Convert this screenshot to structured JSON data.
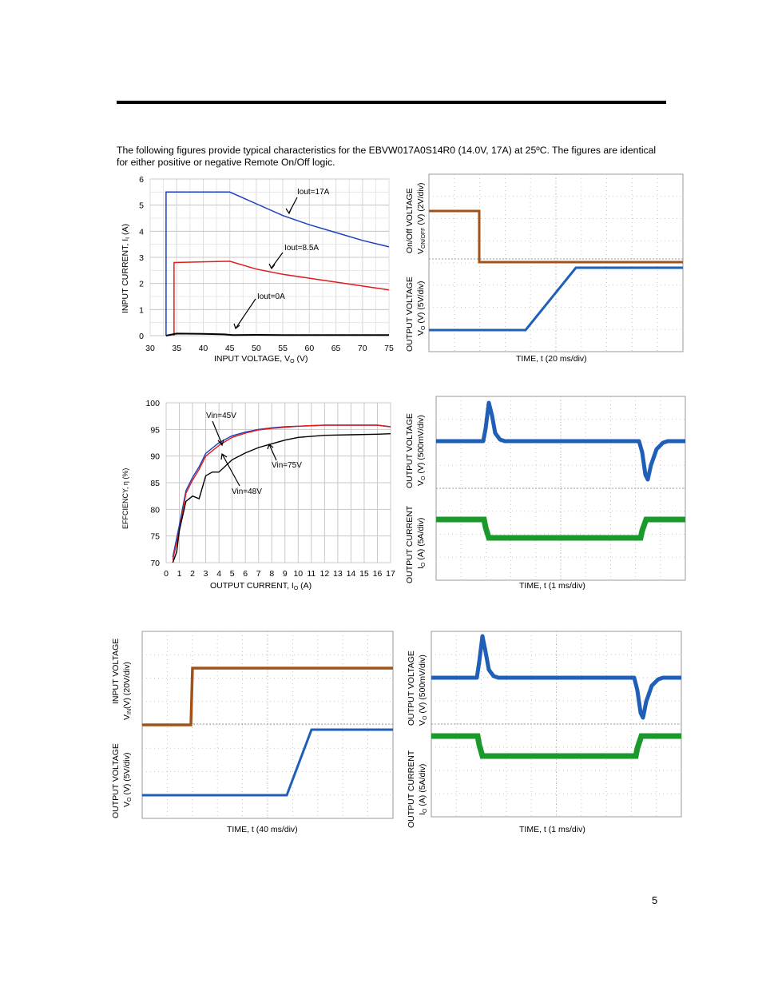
{
  "intro_text": "The following figures provide typical characteristics for the EBVW017A0S14R0 (14.0V, 17A) at 25ºC. The figures are identical for either positive or negative Remote On/Off logic.",
  "page_number": "5",
  "fig1": {
    "ylabel": "INPUT CURRENT, I",
    "ylabel_sub": "I",
    "ylabel_unit": " (A)",
    "xlabel": "INPUT VOLTAGE, V",
    "xlabel_sub": "O",
    "xlabel_unit": " (V)",
    "xticks": [
      "30",
      "35",
      "40",
      "45",
      "50",
      "55",
      "60",
      "65",
      "70",
      "75"
    ],
    "yticks": [
      "0",
      "1",
      "2",
      "3",
      "4",
      "5",
      "6"
    ],
    "ann_17": "Iout=17A",
    "ann_85": "Iout=8.5A",
    "ann_0": "Iout=0A"
  },
  "fig2": {
    "ylabel_top": "On/Off VOLTAGE",
    "ylabel_top2": "V",
    "ylabel_top2_sub": "ON/OFF",
    "ylabel_top2_unit": " (V) (2V/div)",
    "ylabel_bot": "OUTPUT VOLTAGE",
    "ylabel_bot2": "V",
    "ylabel_bot2_sub": "O",
    "ylabel_bot2_unit": " (V) (5V/div)",
    "xlabel": "TIME, t (20 ms/div)"
  },
  "fig3": {
    "ylabel": "EFFCIENCY, η (%)",
    "xlabel": "OUTPUT CURRENT, I",
    "xlabel_sub": "O",
    "xlabel_unit": " (A)",
    "xticks": [
      "0",
      "1",
      "2",
      "3",
      "4",
      "5",
      "6",
      "7",
      "8",
      "9",
      "10",
      "11",
      "12",
      "13",
      "14",
      "15",
      "16",
      "17"
    ],
    "yticks": [
      "70",
      "75",
      "80",
      "85",
      "90",
      "95",
      "100"
    ],
    "ann_45": "Vin=45V",
    "ann_75": "Vin=75V",
    "ann_48": "Vin=48V"
  },
  "fig4": {
    "ylabel_top": "OUTPUT VOLTAGE",
    "ylabel_top2": "V",
    "ylabel_top2_sub": "O",
    "ylabel_top2_unit": " (V) (500mV/div)",
    "ylabel_bot": "OUTPUT CURRENT",
    "ylabel_bot2": "I",
    "ylabel_bot2_sub": "O",
    "ylabel_bot2_unit": " (A) (5A/div)",
    "xlabel": "TIME, t (1 ms/div)"
  },
  "fig5": {
    "ylabel_top": "INPUT VOLTAGE",
    "ylabel_top2": "V",
    "ylabel_top2_sub": "IN",
    "ylabel_top2_unit": "(V) (20V/div)",
    "ylabel_bot": "OUTPUT VOLTAGE",
    "ylabel_bot2": "V",
    "ylabel_bot2_sub": "O",
    "ylabel_bot2_unit": " (V) (5V/div)",
    "xlabel": "TIME, t (40 ms/div)"
  },
  "fig6": {
    "ylabel_top": "OUTPUT VOLTAGE",
    "ylabel_top2": "V",
    "ylabel_top2_sub": "O",
    "ylabel_top2_unit": " (V) (500mV/div)",
    "ylabel_bot": "OUTPUT CURRENT",
    "ylabel_bot2": "I",
    "ylabel_bot2_sub": "O",
    "ylabel_bot2_unit": " (A) (5A/div)",
    "xlabel": "TIME, t (1 ms/div)"
  },
  "chart_data": [
    {
      "type": "line",
      "xlabel": "INPUT VOLTAGE, VO (V)",
      "ylabel": "INPUT CURRENT, II (A)",
      "xlim": [
        30,
        75
      ],
      "ylim": [
        0,
        6
      ],
      "grid": true,
      "series": [
        {
          "name": "Iout=17A",
          "x": [
            33,
            33,
            45,
            50,
            55,
            60,
            65,
            70,
            75
          ],
          "y": [
            0,
            5.5,
            5.5,
            5.05,
            4.6,
            4.25,
            3.95,
            3.65,
            3.4
          ]
        },
        {
          "name": "Iout=8.5A",
          "x": [
            34.5,
            34.5,
            45,
            50,
            55,
            60,
            65,
            70,
            75
          ],
          "y": [
            0,
            2.8,
            2.85,
            2.55,
            2.35,
            2.2,
            2.05,
            1.9,
            1.75
          ]
        },
        {
          "name": "Iout=0A",
          "x": [
            33,
            35,
            40,
            44,
            45.5,
            50,
            55,
            60,
            65,
            70,
            75
          ],
          "y": [
            0,
            0.08,
            0.07,
            0.05,
            0.02,
            0.03,
            0.02,
            0.02,
            0.02,
            0.02,
            0.02
          ]
        }
      ]
    },
    {
      "type": "line",
      "xlabel": "OUTPUT CURRENT, IO (A)",
      "ylabel": "EFFCIENCY, η (%)",
      "xlim": [
        0,
        17
      ],
      "ylim": [
        70,
        100
      ],
      "grid": true,
      "series": [
        {
          "name": "Vin=45V",
          "x": [
            0.5,
            1,
            1.5,
            2,
            2.5,
            3,
            4,
            5,
            6,
            7,
            8,
            9,
            10,
            12,
            14,
            16,
            17
          ],
          "y": [
            71,
            77,
            83.5,
            86,
            88,
            90.5,
            92.5,
            93.8,
            94.5,
            95,
            95.3,
            95.5,
            95.6,
            95.8,
            95.8,
            95.8,
            95.5
          ]
        },
        {
          "name": "Vin=48V",
          "x": [
            0.5,
            1,
            1.5,
            2,
            2.5,
            3,
            4,
            5,
            6,
            7,
            8,
            9,
            10,
            12,
            14,
            16,
            17
          ],
          "y": [
            70.5,
            76,
            83,
            85.5,
            87.5,
            90,
            92,
            93.5,
            94.3,
            94.9,
            95.2,
            95.4,
            95.6,
            95.8,
            95.8,
            95.8,
            95.5
          ]
        },
        {
          "name": "Vin=75V",
          "x": [
            0.5,
            0.8,
            1,
            1.5,
            2,
            2.5,
            3,
            3.5,
            4,
            5,
            6,
            7,
            8,
            9,
            10,
            12,
            14,
            16,
            17
          ],
          "y": [
            70,
            72,
            76,
            81.5,
            82.5,
            82,
            86.3,
            87,
            87,
            89.3,
            90.6,
            91.6,
            92.3,
            93,
            93.5,
            93.9,
            94,
            94.1,
            94.2
          ]
        }
      ]
    }
  ]
}
